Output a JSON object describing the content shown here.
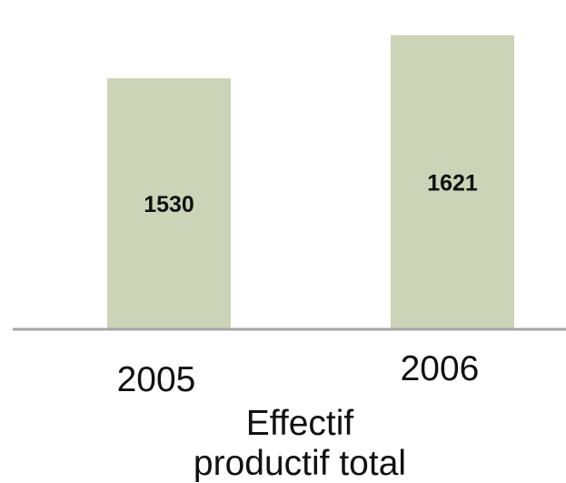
{
  "chart_data": {
    "type": "bar",
    "categories": [
      "2005",
      "2006"
    ],
    "values": [
      1530,
      1621
    ],
    "data_labels": [
      "1530",
      "1621"
    ],
    "title": "Effectif productif total",
    "title_lines": [
      "Effectif",
      "productif total"
    ],
    "xlabel": "",
    "ylabel": "",
    "ylim": [
      1000,
      1680
    ],
    "grid": false,
    "legend": "none",
    "colors": {
      "bar": "#ccd3b7",
      "axis": "#a6a6a6",
      "text": "#111111"
    }
  }
}
